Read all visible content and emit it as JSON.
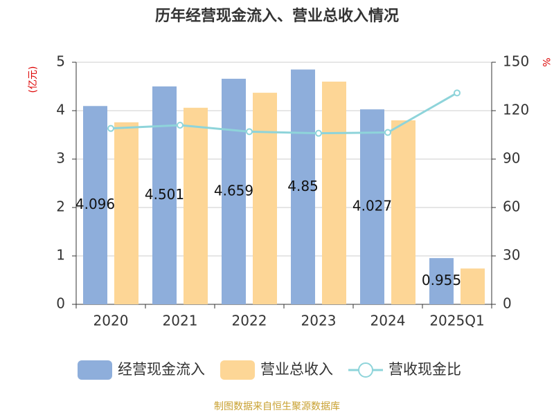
{
  "chart_data": {
    "type": "bar-line",
    "title": "历年经营现金流入、营业总收入情况",
    "y_label": "(亿元)",
    "y2_label": "%",
    "source": "制图数据来自恒生聚源数据库",
    "categories": [
      "2020",
      "2021",
      "2022",
      "2023",
      "2024",
      "2025Q1"
    ],
    "series": [
      {
        "name": "经营现金流入",
        "color": "#8eaedb",
        "type": "bar",
        "values": [
          4.096,
          4.501,
          4.659,
          4.85,
          4.027,
          0.955
        ],
        "show_labels": true
      },
      {
        "name": "营业总收入",
        "color": "#fdd696",
        "type": "bar",
        "values": [
          3.76,
          4.06,
          4.37,
          4.6,
          3.8,
          0.74
        ]
      },
      {
        "name": "营收现金比",
        "color": "#8ed4da",
        "type": "line",
        "axis": "y2",
        "values": [
          109,
          111,
          107,
          106,
          106.5,
          131
        ]
      }
    ],
    "ylim": [
      0,
      5
    ],
    "yticks": [
      0,
      1,
      2,
      3,
      4,
      5
    ],
    "y2lim": [
      0,
      150
    ],
    "y2ticks": [
      0,
      30,
      60,
      90,
      120,
      150
    ],
    "grid": true
  }
}
